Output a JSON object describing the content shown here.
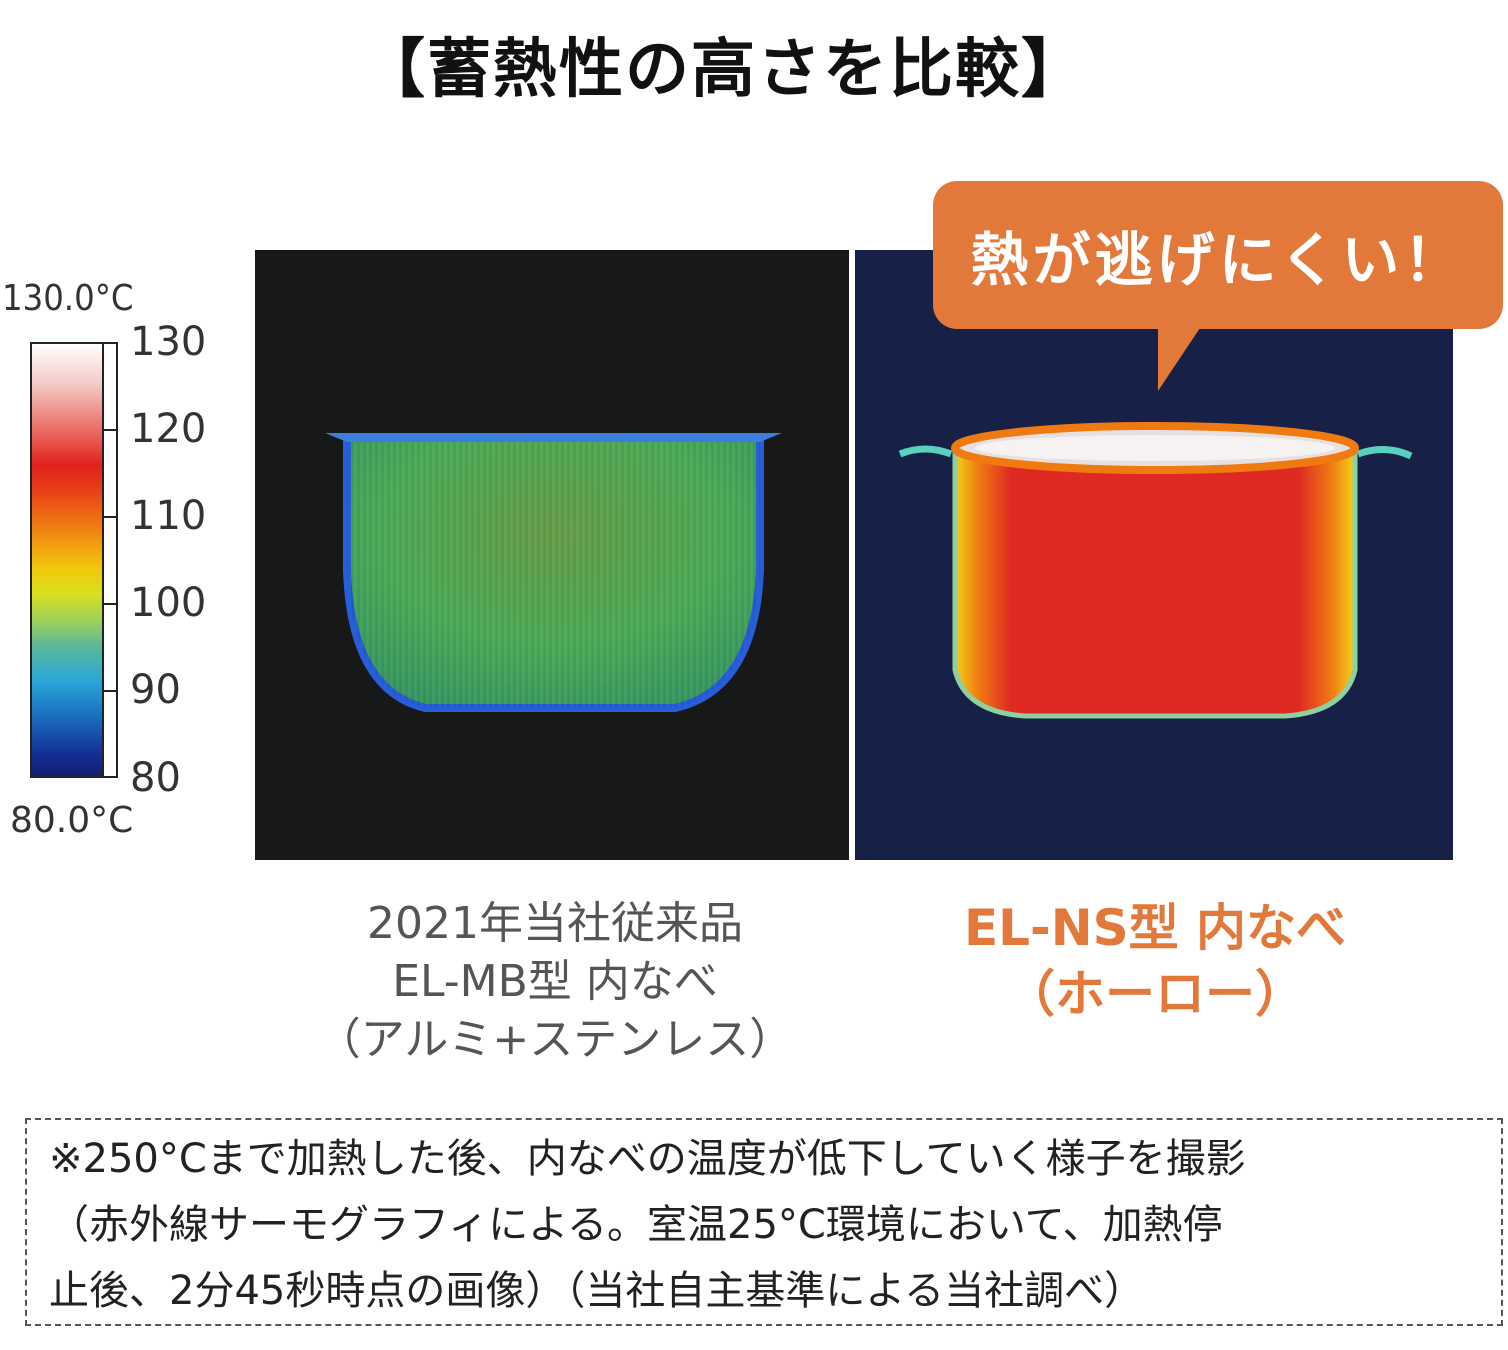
{
  "title": "【蓄熱性の高さを比較】",
  "legend": {
    "max_label": "130.0°C",
    "min_label": "80.0°C",
    "ticks": [
      "130",
      "120",
      "110",
      "100",
      "90",
      "80"
    ]
  },
  "bubble": {
    "text": "熱が逃げにくい！"
  },
  "left_caption": {
    "line1": "2021年当社従来品",
    "line2": "EL-MB型 内なべ",
    "line3": "（アルミ+ステンレス）"
  },
  "right_caption": {
    "line1": "EL-NS型 内なべ",
    "line2": "（ホーロー）"
  },
  "note": {
    "line1": "※250°Cまで加熱した後、内なべの温度が低下していく様子を撮影",
    "line2": "（赤外線サーモグラフィによる。室温25°C環境において、加熱停",
    "line3": "止後、2分45秒時点の画像）（当社自主基準による当社調べ）"
  },
  "colors": {
    "accent_orange": "#e2783a",
    "left_panel_bg": "#171818",
    "right_panel_bg": "#172046",
    "left_pot": "#4fae5a",
    "right_pot": "#d9232a"
  }
}
